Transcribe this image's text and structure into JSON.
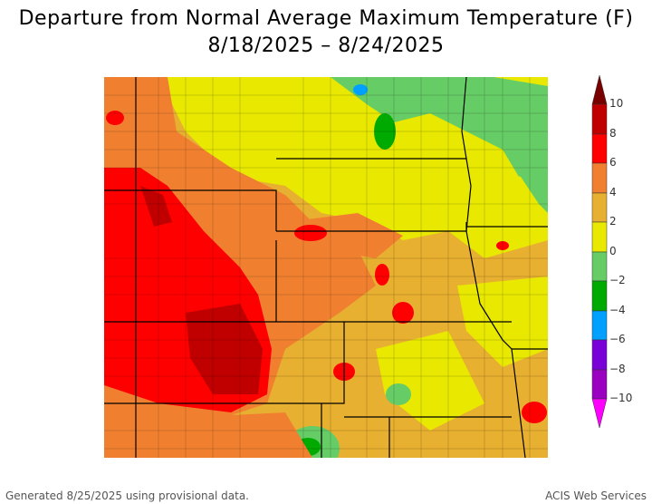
{
  "title": {
    "line1": "Departure from Normal Average Maximum Temperature (F)",
    "line2": "8/18/2025 – 8/24/2025"
  },
  "legend": {
    "labels": [
      "10",
      "8",
      "6",
      "4",
      "2",
      "0",
      "−2",
      "−4",
      "−6",
      "−8",
      "−10"
    ],
    "colors": {
      "above10": "#7a0000",
      "b8_10": "#c00000",
      "b6_8": "#ff0000",
      "b4_6": "#f08030",
      "b2_4": "#e8b030",
      "b0_2": "#e8e800",
      "bm2_0": "#66cc66",
      "bm4_m2": "#00aa00",
      "bm6_m4": "#00a0ff",
      "bm8_m6": "#7a00d8",
      "bm10_m8": "#9a00c0",
      "below_m10": "#ff00ff"
    }
  },
  "footer": {
    "left": "Generated 8/25/2025 using provisional data.",
    "right": "ACIS Web Services"
  }
}
